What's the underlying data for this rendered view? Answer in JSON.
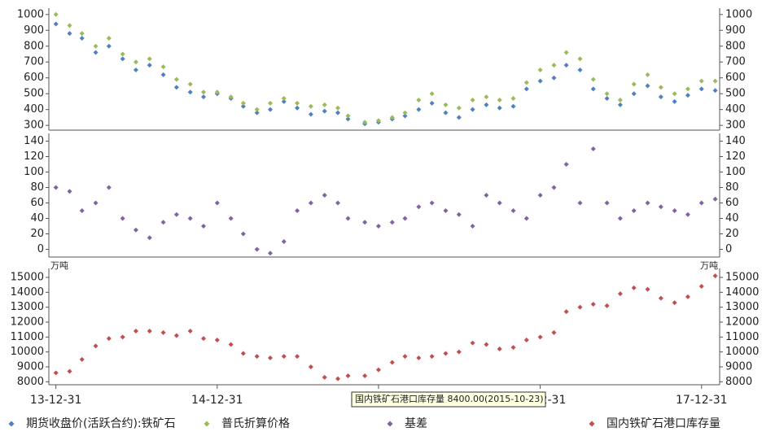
{
  "chart_data": {
    "type": "scatter",
    "x": [
      "13-12-31",
      "14-01-31",
      "14-02-28",
      "14-03-31",
      "14-04-30",
      "14-05-31",
      "14-06-30",
      "14-07-31",
      "14-08-31",
      "14-09-30",
      "14-10-31",
      "14-11-30",
      "14-12-31",
      "15-01-31",
      "15-02-28",
      "15-03-31",
      "15-04-30",
      "15-05-31",
      "15-06-30",
      "15-07-31",
      "15-08-31",
      "15-09-30",
      "15-10-23",
      "15-11-30",
      "15-12-31",
      "16-01-31",
      "16-02-29",
      "16-03-31",
      "16-04-30",
      "16-05-31",
      "16-06-30",
      "16-07-31",
      "16-08-31",
      "16-09-30",
      "16-10-31",
      "16-11-30",
      "16-12-31",
      "17-01-31",
      "17-02-28",
      "17-03-31",
      "17-04-30",
      "17-05-31",
      "17-06-30",
      "17-07-31",
      "17-08-31",
      "17-09-30",
      "17-10-31",
      "17-11-30",
      "17-12-31",
      "18-01-31"
    ],
    "xlim": [
      "13-12-15",
      "18-02-10"
    ],
    "xticks": [
      "13-12-31",
      "14-12-31",
      "15-12-31",
      "16-12-31",
      "17-12-31"
    ],
    "panels": [
      {
        "ylim": [
          270,
          1040
        ],
        "yticks": [
          300,
          400,
          500,
          600,
          700,
          800,
          900,
          1000
        ],
        "series": [
          {
            "name": "期货收盘价(活跃合约):铁矿石",
            "color": "#4f81bd",
            "values": [
              940,
              880,
              850,
              760,
              800,
              720,
              650,
              680,
              620,
              540,
              510,
              480,
              500,
              470,
              420,
              380,
              400,
              450,
              410,
              370,
              390,
              380,
              340,
              310,
              320,
              340,
              360,
              400,
              440,
              380,
              350,
              400,
              430,
              410,
              420,
              530,
              580,
              600,
              680,
              650,
              530,
              470,
              430,
              500,
              550,
              480,
              450,
              490,
              530,
              520
            ]
          },
          {
            "name": "普氏折算价格",
            "color": "#9bbb59",
            "values": [
              1000,
              930,
              880,
              800,
              850,
              750,
              700,
              720,
              670,
              590,
              560,
              510,
              510,
              480,
              440,
              400,
              440,
              470,
              440,
              420,
              430,
              410,
              360,
              320,
              330,
              350,
              380,
              460,
              500,
              430,
              410,
              460,
              480,
              460,
              470,
              570,
              650,
              680,
              760,
              720,
              590,
              500,
              460,
              560,
              620,
              540,
              500,
              530,
              580,
              580
            ]
          }
        ]
      },
      {
        "ylim": [
          -10,
          150
        ],
        "yticks": [
          0,
          20,
          40,
          60,
          80,
          100,
          120,
          140
        ],
        "series": [
          {
            "name": "基差",
            "color": "#8064a2",
            "values": [
              80,
              75,
              50,
              60,
              80,
              40,
              25,
              15,
              35,
              45,
              40,
              30,
              60,
              40,
              20,
              0,
              -5,
              10,
              50,
              60,
              70,
              60,
              40,
              35,
              30,
              35,
              40,
              55,
              60,
              50,
              45,
              30,
              70,
              60,
              50,
              40,
              70,
              80,
              110,
              60,
              130,
              60,
              40,
              50,
              60,
              55,
              50,
              45,
              60,
              65
            ]
          }
        ]
      },
      {
        "ylim": [
          7800,
          15600
        ],
        "yticks": [
          8000,
          9000,
          10000,
          11000,
          12000,
          13000,
          14000,
          15000
        ],
        "unit": "万吨",
        "series": [
          {
            "name": "国内铁矿石港口库存量",
            "color": "#c0504d",
            "values": [
              8600,
              8700,
              9500,
              10400,
              10900,
              11000,
              11400,
              11400,
              11300,
              11100,
              11400,
              10900,
              10800,
              10500,
              9900,
              9700,
              9600,
              9700,
              9700,
              9000,
              8300,
              8200,
              8400,
              8400,
              8800,
              9300,
              9700,
              9600,
              9700,
              9900,
              10000,
              10600,
              10500,
              10200,
              10300,
              10800,
              11000,
              11300,
              12700,
              13000,
              13200,
              13100,
              13900,
              14300,
              14200,
              13600,
              13300,
              13700,
              14400,
              15100
            ]
          }
        ]
      }
    ],
    "tooltip": "国内铁矿石港口库存量 8400.00(2015-10-23)"
  }
}
